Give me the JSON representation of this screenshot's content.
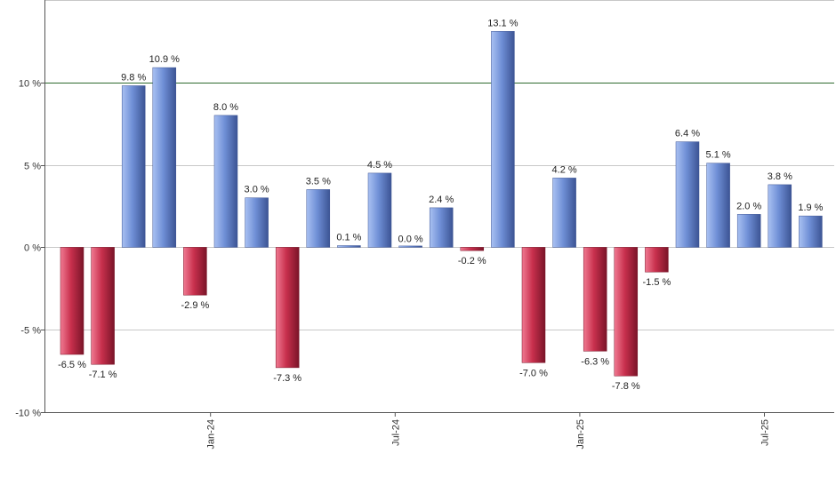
{
  "chart_data": {
    "type": "bar",
    "title": "",
    "xlabel": "",
    "ylabel": "",
    "ylim": [
      -10,
      15
    ],
    "y_ticks": [
      -10,
      -5,
      0,
      5,
      10
    ],
    "y_tick_suffix": " %",
    "grid": true,
    "reference_line": {
      "value": 10,
      "color": "#2e6b2e"
    },
    "x_tick_labels": [
      {
        "label": "Jan-24",
        "index": 4.5
      },
      {
        "label": "Jul-24",
        "index": 10.5
      },
      {
        "label": "Jan-25",
        "index": 16.5
      },
      {
        "label": "Jul-25",
        "index": 22.5
      }
    ],
    "values": [
      -6.5,
      -7.1,
      9.8,
      10.9,
      -2.9,
      8.0,
      3.0,
      -7.3,
      3.5,
      0.1,
      4.5,
      0.0,
      2.4,
      -0.2,
      13.1,
      -7.0,
      4.2,
      -6.3,
      -7.8,
      -1.5,
      6.4,
      5.1,
      2.0,
      3.8,
      1.9
    ],
    "labels": [
      "-6.5 %",
      "-7.1 %",
      "9.8 %",
      "10.9 %",
      "-2.9 %",
      "8.0 %",
      "3.0 %",
      "-7.3 %",
      "3.5 %",
      "0.1 %",
      "4.5 %",
      "0.0 %",
      "2.4 %",
      "-0.2 %",
      "13.1 %",
      "-7.0 %",
      "4.2 %",
      "-6.3 %",
      "-7.8 %",
      "-1.5 %",
      "6.4 %",
      "5.1 %",
      "2.0 %",
      "3.8 %",
      "1.9 %"
    ],
    "colors": {
      "positive": "#6f8fd6",
      "negative": "#c8304d",
      "grid": "#c8c8c8",
      "axis": "#555555"
    }
  }
}
